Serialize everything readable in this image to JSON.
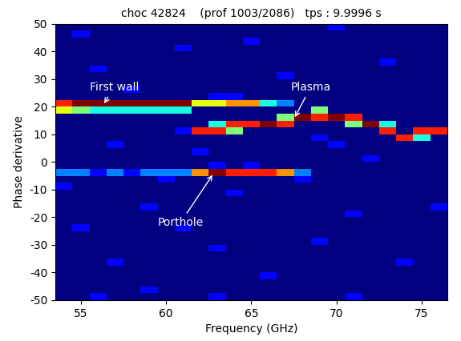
{
  "chart_data": {
    "type": "heatmap",
    "title": "choc 42824    (prof 1003/2086)   tps : 9.9996 s",
    "x_label": "Frequency (GHz)",
    "y_label": "Phase derivative",
    "xlim": [
      53.5,
      76.5
    ],
    "ylim": [
      -50,
      50
    ],
    "xticks": [
      55,
      60,
      65,
      70,
      75
    ],
    "yticks": [
      -50,
      -40,
      -30,
      -20,
      -10,
      0,
      10,
      20,
      30,
      40,
      50
    ],
    "x_edges": [
      53.5,
      54.5,
      55.5,
      56.5,
      57.5,
      58.5,
      59.5,
      60.5,
      61.5,
      62.5,
      63.5,
      64.5,
      65.5,
      66.5,
      67.5,
      68.5,
      69.5,
      70.5,
      71.5,
      72.5,
      73.5,
      74.5,
      75.5,
      76.5
    ],
    "y_edges": [
      -50,
      -47.5,
      -45,
      -42.5,
      -40,
      -37.5,
      -35,
      -32.5,
      -30,
      -27.5,
      -25,
      -22.5,
      -20,
      -17.5,
      -15,
      -12.5,
      -10,
      -7.5,
      -5,
      -2.5,
      0,
      2.5,
      5,
      7.5,
      10,
      12.5,
      15,
      17.5,
      20,
      22.5,
      25,
      27.5,
      30,
      32.5,
      35,
      37.5,
      40,
      42.5,
      45,
      47.5,
      50
    ],
    "cells": [
      [
        1,
        1,
        2,
        1,
        1,
        1,
        1,
        1,
        1,
        2,
        1,
        1,
        1,
        1,
        1,
        1,
        1,
        2,
        1,
        1,
        1,
        1,
        1
      ],
      [
        1,
        1,
        1,
        1,
        1,
        2,
        1,
        1,
        1,
        1,
        1,
        1,
        1,
        1,
        1,
        1,
        1,
        1,
        1,
        1,
        1,
        1,
        1
      ],
      [
        1,
        1,
        1,
        1,
        1,
        1,
        1,
        1,
        1,
        1,
        1,
        1,
        1,
        1,
        1,
        1,
        1,
        1,
        1,
        1,
        1,
        1,
        1
      ],
      [
        1,
        1,
        1,
        1,
        1,
        1,
        1,
        1,
        1,
        1,
        1,
        1,
        2,
        1,
        1,
        1,
        1,
        1,
        1,
        1,
        1,
        1,
        1
      ],
      [
        1,
        1,
        1,
        1,
        1,
        1,
        1,
        1,
        1,
        1,
        1,
        1,
        1,
        1,
        1,
        1,
        1,
        1,
        1,
        1,
        1,
        1,
        1
      ],
      [
        1,
        1,
        1,
        2,
        1,
        1,
        1,
        1,
        1,
        1,
        1,
        1,
        1,
        1,
        1,
        1,
        1,
        1,
        1,
        1,
        2,
        1,
        1
      ],
      [
        1,
        1,
        1,
        1,
        1,
        1,
        1,
        1,
        1,
        1,
        1,
        1,
        1,
        1,
        1,
        1,
        1,
        1,
        1,
        1,
        1,
        1,
        1
      ],
      [
        1,
        1,
        1,
        1,
        1,
        1,
        1,
        1,
        1,
        2,
        1,
        1,
        1,
        1,
        1,
        1,
        1,
        1,
        1,
        1,
        1,
        1,
        1
      ],
      [
        1,
        1,
        1,
        1,
        1,
        1,
        1,
        1,
        1,
        1,
        1,
        1,
        1,
        1,
        1,
        2,
        1,
        1,
        1,
        1,
        1,
        1,
        1
      ],
      [
        1,
        1,
        1,
        1,
        1,
        1,
        1,
        1,
        1,
        1,
        1,
        1,
        1,
        1,
        1,
        1,
        1,
        1,
        1,
        1,
        1,
        1,
        1
      ],
      [
        1,
        2,
        1,
        1,
        1,
        1,
        1,
        2,
        1,
        1,
        1,
        1,
        1,
        1,
        1,
        1,
        1,
        1,
        1,
        1,
        1,
        1,
        1
      ],
      [
        1,
        1,
        1,
        1,
        1,
        1,
        1,
        1,
        1,
        1,
        1,
        1,
        1,
        1,
        1,
        1,
        1,
        1,
        1,
        1,
        1,
        1,
        1
      ],
      [
        1,
        1,
        1,
        1,
        1,
        1,
        1,
        1,
        1,
        1,
        1,
        1,
        1,
        1,
        1,
        1,
        1,
        2,
        1,
        1,
        1,
        1,
        1
      ],
      [
        1,
        1,
        1,
        1,
        1,
        2,
        1,
        1,
        1,
        1,
        1,
        1,
        1,
        1,
        1,
        1,
        1,
        1,
        1,
        1,
        1,
        1,
        2
      ],
      [
        1,
        1,
        1,
        1,
        1,
        1,
        1,
        1,
        1,
        1,
        1,
        1,
        1,
        1,
        1,
        1,
        1,
        1,
        1,
        1,
        1,
        1,
        1
      ],
      [
        1,
        1,
        1,
        1,
        1,
        1,
        1,
        1,
        1,
        1,
        2,
        1,
        1,
        1,
        1,
        1,
        1,
        1,
        1,
        1,
        1,
        1,
        1
      ],
      [
        2,
        1,
        1,
        1,
        1,
        1,
        1,
        1,
        1,
        1,
        1,
        1,
        1,
        1,
        1,
        1,
        1,
        1,
        1,
        1,
        1,
        1,
        1
      ],
      [
        1,
        1,
        1,
        1,
        1,
        1,
        2,
        1,
        1,
        1,
        1,
        1,
        1,
        1,
        2,
        1,
        1,
        1,
        1,
        1,
        1,
        1,
        1
      ],
      [
        3,
        3,
        2,
        3,
        2,
        3,
        3,
        3,
        7,
        9,
        8,
        8,
        8,
        7,
        3,
        1,
        1,
        1,
        1,
        1,
        1,
        1,
        1
      ],
      [
        1,
        1,
        1,
        1,
        1,
        1,
        1,
        1,
        1,
        2,
        1,
        2,
        1,
        1,
        1,
        1,
        1,
        1,
        1,
        1,
        1,
        1,
        1
      ],
      [
        1,
        1,
        1,
        1,
        1,
        1,
        1,
        1,
        1,
        1,
        1,
        1,
        1,
        1,
        1,
        1,
        1,
        1,
        2,
        1,
        1,
        1,
        1
      ],
      [
        1,
        1,
        1,
        1,
        1,
        1,
        1,
        1,
        2,
        1,
        1,
        1,
        1,
        1,
        1,
        1,
        1,
        1,
        1,
        1,
        1,
        1,
        1
      ],
      [
        1,
        1,
        1,
        2,
        1,
        1,
        1,
        1,
        1,
        1,
        1,
        1,
        1,
        1,
        1,
        1,
        2,
        1,
        1,
        1,
        1,
        1,
        1
      ],
      [
        1,
        1,
        1,
        1,
        1,
        1,
        1,
        1,
        1,
        1,
        1,
        1,
        1,
        1,
        1,
        2,
        1,
        1,
        1,
        1,
        8,
        4,
        1
      ],
      [
        1,
        1,
        1,
        1,
        1,
        1,
        1,
        2,
        8,
        8,
        5,
        1,
        1,
        1,
        1,
        1,
        1,
        1,
        1,
        8,
        1,
        8,
        8
      ],
      [
        1,
        1,
        1,
        1,
        1,
        1,
        1,
        1,
        1,
        4,
        8,
        8,
        9,
        8,
        1,
        1,
        1,
        5,
        9,
        4,
        1,
        1,
        1
      ],
      [
        1,
        1,
        1,
        1,
        1,
        1,
        1,
        1,
        1,
        1,
        1,
        1,
        1,
        5,
        9,
        8,
        9,
        8,
        1,
        1,
        1,
        1,
        1
      ],
      [
        6,
        5,
        4,
        4,
        4,
        4,
        4,
        4,
        1,
        1,
        1,
        1,
        1,
        1,
        1,
        5,
        1,
        1,
        1,
        1,
        1,
        1,
        1
      ],
      [
        8,
        9,
        9,
        9,
        9,
        9,
        9,
        9,
        6,
        6,
        7,
        7,
        4,
        3,
        1,
        1,
        1,
        1,
        1,
        1,
        1,
        1,
        1
      ],
      [
        1,
        1,
        1,
        1,
        1,
        1,
        1,
        1,
        1,
        2,
        2,
        1,
        1,
        1,
        1,
        1,
        1,
        1,
        1,
        1,
        1,
        1,
        1
      ],
      [
        1,
        1,
        1,
        1,
        2,
        1,
        1,
        1,
        1,
        1,
        1,
        1,
        1,
        1,
        1,
        1,
        1,
        1,
        1,
        1,
        1,
        1,
        1
      ],
      [
        1,
        1,
        1,
        1,
        1,
        1,
        1,
        1,
        1,
        1,
        1,
        1,
        1,
        1,
        1,
        1,
        1,
        1,
        1,
        1,
        1,
        1,
        1
      ],
      [
        1,
        1,
        1,
        1,
        1,
        1,
        1,
        1,
        1,
        1,
        1,
        1,
        1,
        2,
        1,
        1,
        1,
        1,
        1,
        1,
        1,
        1,
        1
      ],
      [
        1,
        1,
        2,
        1,
        1,
        1,
        1,
        1,
        1,
        1,
        1,
        1,
        1,
        1,
        1,
        1,
        1,
        1,
        1,
        1,
        1,
        1,
        1
      ],
      [
        1,
        1,
        1,
        1,
        1,
        1,
        1,
        1,
        1,
        1,
        1,
        1,
        1,
        1,
        1,
        1,
        1,
        1,
        1,
        2,
        1,
        1,
        1
      ],
      [
        1,
        1,
        1,
        1,
        1,
        1,
        1,
        1,
        1,
        1,
        1,
        1,
        1,
        1,
        1,
        1,
        1,
        1,
        1,
        1,
        1,
        1,
        1
      ],
      [
        1,
        1,
        1,
        1,
        1,
        1,
        1,
        2,
        1,
        1,
        1,
        1,
        1,
        1,
        1,
        1,
        1,
        1,
        1,
        1,
        1,
        1,
        1
      ],
      [
        1,
        1,
        1,
        1,
        1,
        1,
        1,
        1,
        1,
        1,
        1,
        2,
        1,
        1,
        1,
        1,
        1,
        1,
        1,
        1,
        1,
        1,
        1
      ],
      [
        1,
        2,
        1,
        1,
        1,
        1,
        1,
        1,
        1,
        1,
        1,
        1,
        1,
        1,
        1,
        1,
        1,
        1,
        1,
        1,
        1,
        1,
        1
      ],
      [
        1,
        1,
        1,
        1,
        1,
        1,
        1,
        1,
        1,
        1,
        1,
        1,
        1,
        1,
        1,
        1,
        2,
        1,
        1,
        1,
        1,
        1,
        1
      ]
    ],
    "annotations": [
      {
        "text": "First wall",
        "x": 56.3,
        "y": 20.5,
        "text_x": 55.5,
        "text_y": 27
      },
      {
        "text": "Plasma",
        "x": 67.5,
        "y": 15.5,
        "text_x": 67.3,
        "text_y": 27
      },
      {
        "text": "Porthole",
        "x": 62.8,
        "y": -4,
        "text_x": 59.5,
        "text_y": -22
      }
    ]
  }
}
